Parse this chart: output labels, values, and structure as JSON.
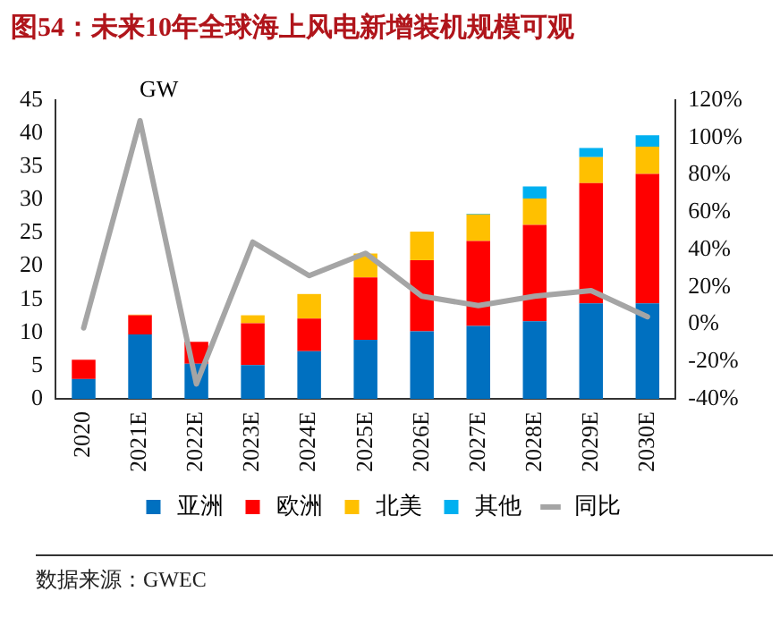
{
  "chart_data": {
    "type": "bar",
    "title": "图54：未来10年全球海上风电新增装机规模可观",
    "ylabel": "GW",
    "categories": [
      "2020",
      "2021E",
      "2022E",
      "2023E",
      "2024E",
      "2025E",
      "2026E",
      "2027E",
      "2028E",
      "2029E",
      "2030E"
    ],
    "stacked": true,
    "series": [
      {
        "name": "亚洲",
        "color": "#0070c0",
        "values": [
          3.0,
          9.7,
          5.3,
          5.1,
          7.2,
          8.9,
          10.2,
          11.0,
          11.7,
          14.4,
          14.4
        ]
      },
      {
        "name": "欧洲",
        "color": "#ff0000",
        "values": [
          2.9,
          2.9,
          3.3,
          6.3,
          4.9,
          9.4,
          10.7,
          12.8,
          14.5,
          18.1,
          19.5
        ]
      },
      {
        "name": "北美",
        "color": "#ffc000",
        "values": [
          null,
          0.1,
          0,
          1.2,
          3.7,
          3.6,
          4.3,
          4.0,
          4.0,
          3.9,
          4.1
        ]
      },
      {
        "name": "其他",
        "color": "#00b0f0",
        "values": [
          0,
          0,
          0,
          0,
          0,
          0,
          0,
          0.1,
          1.8,
          1.4,
          1.7
        ]
      },
      {
        "name": "同比",
        "color": "#a5a5a5",
        "type": "line",
        "axis": "y2",
        "values": [
          -2,
          109,
          -32,
          44,
          26,
          38,
          15,
          10,
          15,
          18,
          4
        ]
      }
    ],
    "ylim": [
      0,
      45
    ],
    "yticks": [
      0,
      5,
      10,
      15,
      20,
      25,
      30,
      35,
      40,
      45
    ],
    "y2lim": [
      -40,
      120
    ],
    "y2ticks": [
      {
        "value": -40,
        "label": "-40%"
      },
      {
        "value": -20,
        "label": "-20%"
      },
      {
        "value": 0,
        "label": "0%"
      },
      {
        "value": 20,
        "label": "20%"
      },
      {
        "value": 40,
        "label": "40%"
      },
      {
        "value": 60,
        "label": "60%"
      },
      {
        "value": 80,
        "label": "80%"
      },
      {
        "value": 100,
        "label": "100%"
      },
      {
        "value": 120,
        "label": "120%"
      }
    ],
    "grid": false,
    "legend": "bottom",
    "marker": "none",
    "annotations": [
      "数据来源：GWEC"
    ]
  }
}
